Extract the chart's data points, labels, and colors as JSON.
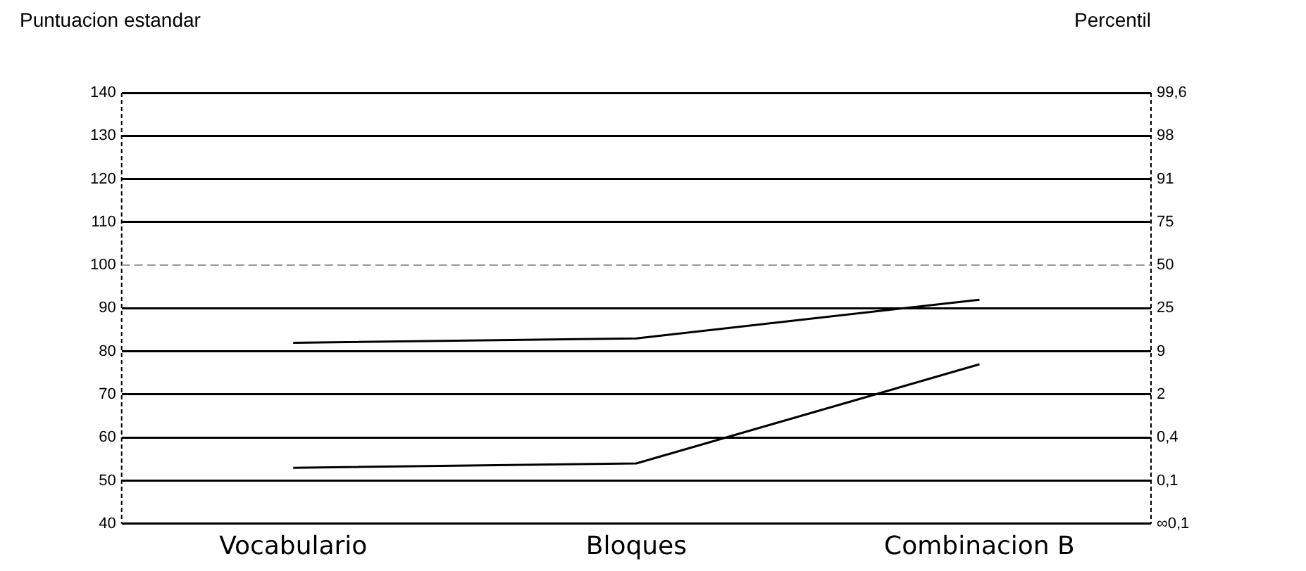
{
  "chart_data": {
    "type": "line",
    "ylabel": "Puntuacion estandar",
    "y2label": "Percentil",
    "categories": [
      "Vocabulario",
      "Bloques",
      "Combinacion B"
    ],
    "series": [
      {
        "color": "#000000",
        "values": [
          82,
          83,
          92
        ]
      },
      {
        "color": "#000000",
        "values": [
          53,
          54,
          77
        ]
      }
    ],
    "ylim": [
      40,
      140
    ],
    "yticks": [
      40,
      50,
      60,
      70,
      80,
      90,
      100,
      110,
      120,
      130,
      140
    ],
    "annotations": [
      "∞0,1",
      "0,1",
      "0,4",
      "2",
      "9",
      "25",
      "50",
      "75",
      "91",
      "98",
      "99,6"
    ],
    "ref_lines": [
      {
        "axis": "y",
        "value": 100,
        "color": "#999999",
        "line_style": "dashed"
      }
    ],
    "grid": "y",
    "legend": false,
    "marker": "none"
  }
}
